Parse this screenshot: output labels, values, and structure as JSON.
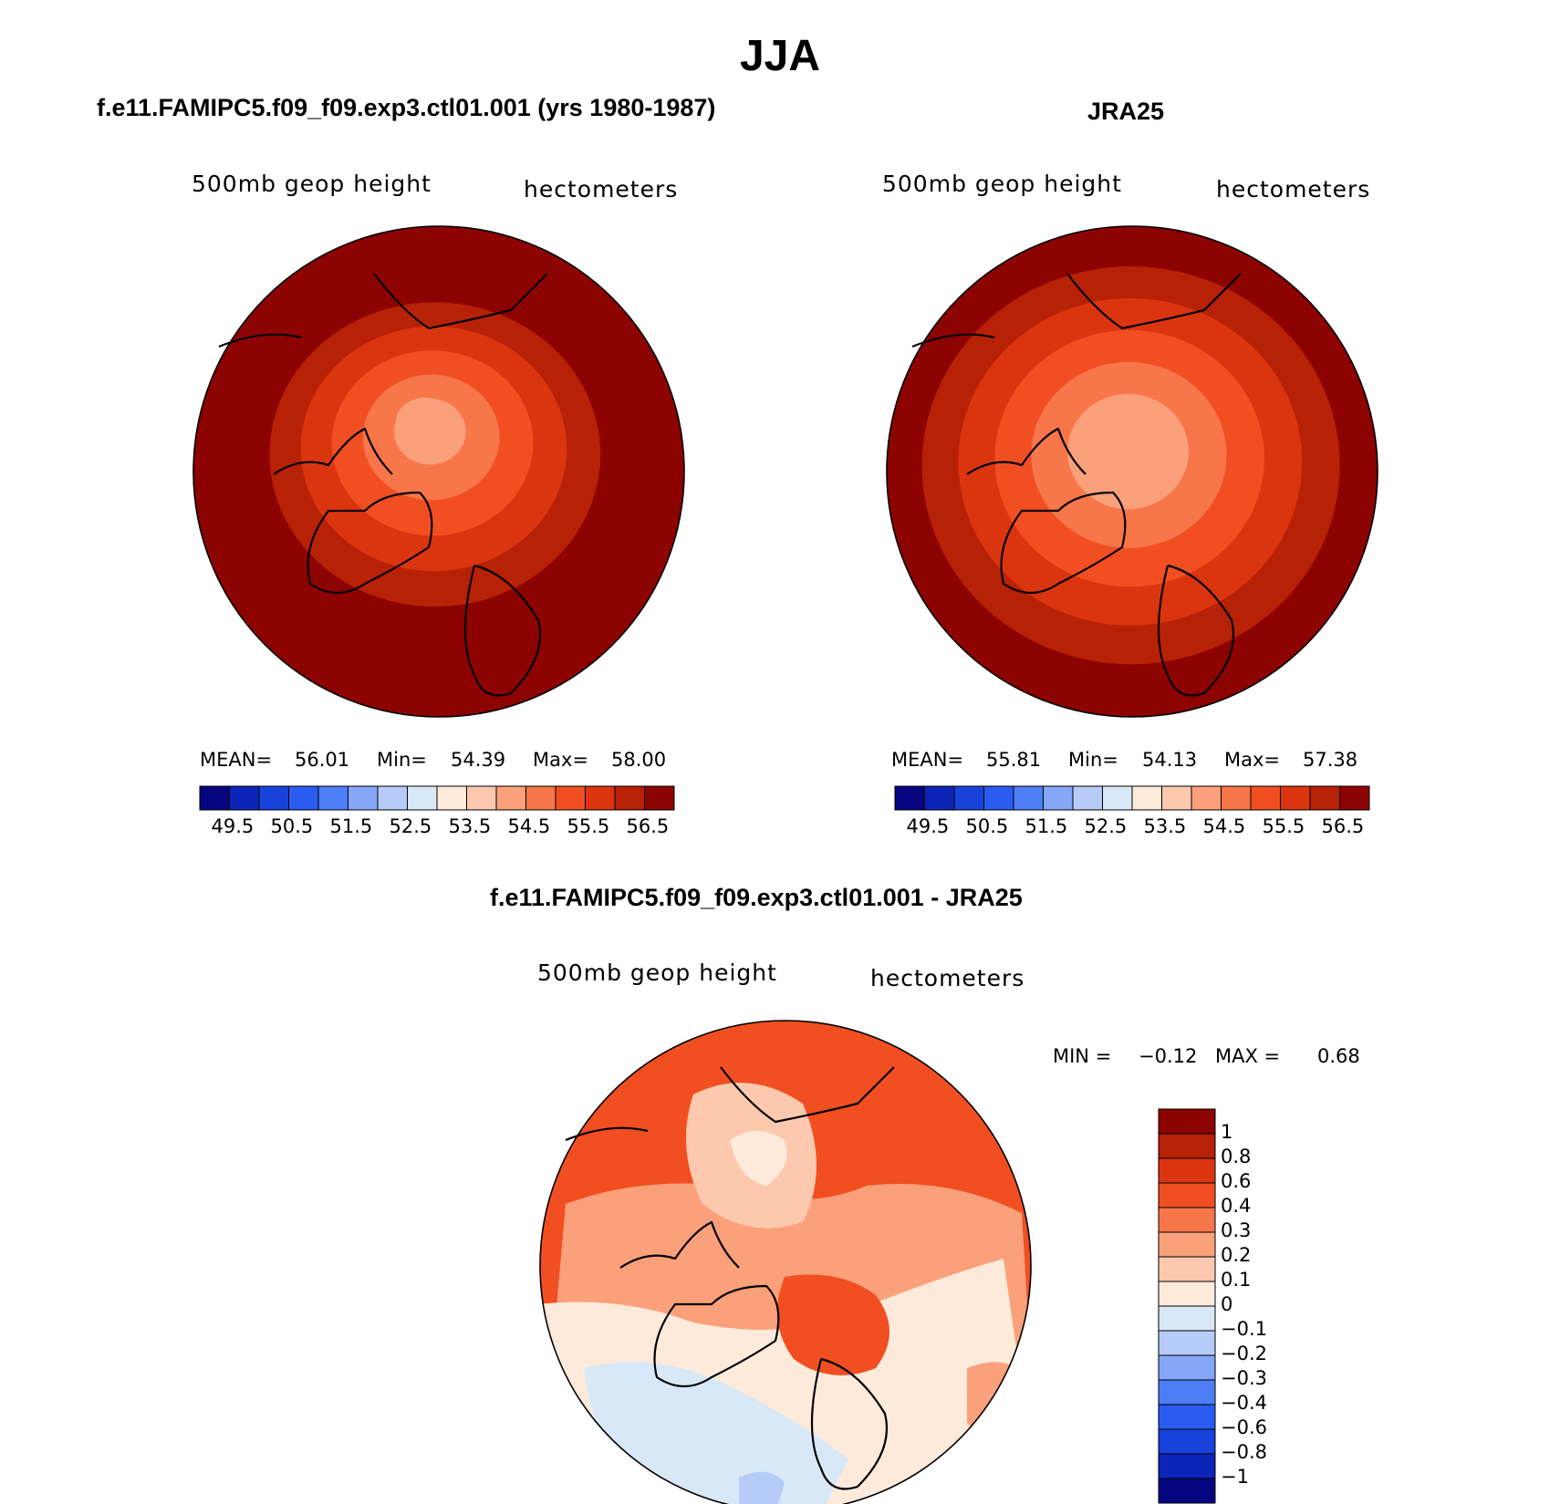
{
  "page": {
    "title": "JJA"
  },
  "panels": [
    {
      "id": "model",
      "case_title": "f.e11.FAMIPC5.f09_f09.exp3.ctl01.001 (yrs 1980-1987)",
      "variable": "500mb geop height",
      "units": "hectometers",
      "stats": {
        "mean_label": "MEAN=",
        "mean": "56.01",
        "min_label": "Min=",
        "min": "54.39",
        "max_label": "Max=",
        "max": "58.00"
      }
    },
    {
      "id": "obs",
      "case_title": "JRA25",
      "variable": "500mb geop height",
      "units": "hectometers",
      "stats": {
        "mean_label": "MEAN=",
        "mean": "55.81",
        "min_label": "Min=",
        "min": "54.13",
        "max_label": "Max=",
        "max": "57.38"
      }
    },
    {
      "id": "diff",
      "case_title": "f.e11.FAMIPC5.f09_f09.exp3.ctl01.001 - JRA25",
      "variable": "500mb geop height",
      "units": "hectometers",
      "stats": {
        "min_label": "MIN =",
        "min": "−0.12",
        "max_label": "MAX =",
        "max": "0.68"
      }
    }
  ],
  "chart_data": [
    {
      "type": "heatmap",
      "projection": "north-polar-stereographic",
      "title": "f.e11.FAMIPC5.f09_f09.exp3.ctl01.001 (yrs 1980-1987)",
      "variable": "500mb geop height",
      "units": "hectometers",
      "mean": 56.01,
      "min": 54.39,
      "max": 58.0,
      "contour_levels": [
        49.5,
        50,
        50.5,
        51,
        51.5,
        52,
        52.5,
        53,
        53.5,
        54,
        54.5,
        55,
        55.5,
        56,
        56.5
      ],
      "colorbar_tick_labels": [
        "49.5",
        "50.5",
        "51.5",
        "52.5",
        "53.5",
        "54.5",
        "55.5",
        "56.5"
      ],
      "approx_field": {
        "pole_value": 54.4,
        "rim_value": 58.0
      }
    },
    {
      "type": "heatmap",
      "projection": "north-polar-stereographic",
      "title": "JRA25",
      "variable": "500mb geop height",
      "units": "hectometers",
      "mean": 55.81,
      "min": 54.13,
      "max": 57.38,
      "contour_levels": [
        49.5,
        50,
        50.5,
        51,
        51.5,
        52,
        52.5,
        53,
        53.5,
        54,
        54.5,
        55,
        55.5,
        56,
        56.5
      ],
      "colorbar_tick_labels": [
        "49.5",
        "50.5",
        "51.5",
        "52.5",
        "53.5",
        "54.5",
        "55.5",
        "56.5"
      ],
      "approx_field": {
        "pole_value": 54.1,
        "rim_value": 57.4
      }
    },
    {
      "type": "heatmap",
      "projection": "north-polar-stereographic",
      "title": "f.e11.FAMIPC5.f09_f09.exp3.ctl01.001 - JRA25",
      "variable": "500mb geop height",
      "units": "hectometers",
      "min": -0.12,
      "max": 0.68,
      "contour_levels": [
        -1,
        -0.8,
        -0.6,
        -0.4,
        -0.3,
        -0.2,
        -0.1,
        0,
        0.1,
        0.2,
        0.3,
        0.4,
        0.6,
        0.8,
        1
      ],
      "colorbar_tick_labels": [
        "1",
        "0.8",
        "0.6",
        "0.4",
        "0.3",
        "0.2",
        "0.1",
        "0",
        "−0.1",
        "−0.2",
        "−0.3",
        "−0.4",
        "−0.6",
        "−0.8",
        "−1"
      ]
    }
  ],
  "colors": {
    "palette16": [
      "#05067f",
      "#0c25b8",
      "#1743db",
      "#2b5cf2",
      "#4e7ef7",
      "#86a7f8",
      "#b6cbf8",
      "#d9e8f7",
      "#fdeadb",
      "#fcc9ae",
      "#faa07a",
      "#f7764a",
      "#f14f22",
      "#db3510",
      "#b72106",
      "#8c0302"
    ],
    "outline": "#000000"
  }
}
